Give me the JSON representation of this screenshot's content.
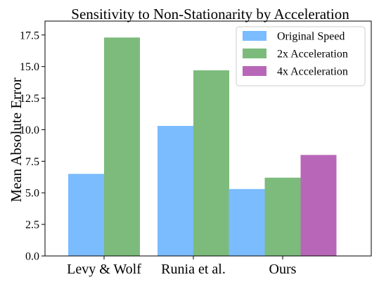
{
  "chart_data": {
    "type": "bar",
    "title": "Sensitivity to Non-Stationarity by Acceleration",
    "xlabel": "",
    "ylabel": "Mean Absolute Error",
    "categories": [
      "Levy & Wolf",
      "Runia et al.",
      "Ours"
    ],
    "series": [
      {
        "name": "Original Speed",
        "color": "#7bbcff",
        "values": [
          6.5,
          10.3,
          5.3
        ]
      },
      {
        "name": "2x Acceleration",
        "color": "#7cbb7c",
        "values": [
          17.3,
          14.7,
          6.2
        ]
      },
      {
        "name": "4x Acceleration",
        "color": "#b867b8",
        "values": [
          null,
          null,
          8.0
        ]
      }
    ],
    "ylim": [
      0,
      18.6
    ],
    "yticks": [
      0.0,
      2.5,
      5.0,
      7.5,
      10.0,
      12.5,
      15.0,
      17.5
    ],
    "ytick_labels": [
      "0.0",
      "2.5",
      "5.0",
      "7.5",
      "10.0",
      "12.5",
      "15.0",
      "17.5"
    ],
    "grid": false,
    "legend_position": "top-right"
  }
}
